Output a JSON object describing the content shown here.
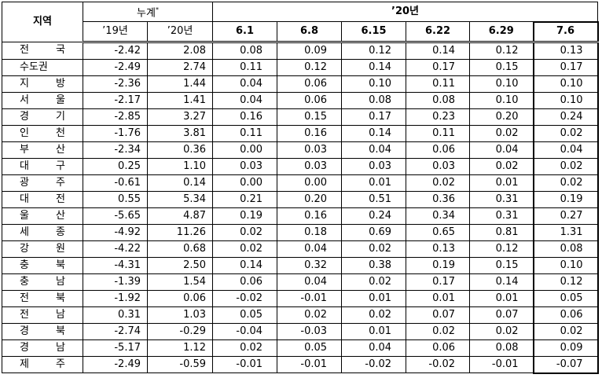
{
  "table": {
    "header": {
      "region": "지역",
      "cumulative": "누계",
      "cumulative_mark": "*",
      "period": "’20년",
      "columns": [
        "’19년",
        "’20년",
        "6.1",
        "6.8",
        "6.15",
        "6.22",
        "6.29",
        "7.6"
      ]
    },
    "rows": [
      [
        "전 국",
        "-2.42",
        "2.08",
        "0.08",
        "0.09",
        "0.12",
        "0.14",
        "0.12",
        "0.13"
      ],
      [
        "수도권",
        "-2.49",
        "2.74",
        "0.11",
        "0.12",
        "0.14",
        "0.17",
        "0.15",
        "0.17"
      ],
      [
        "지 방",
        "-2.36",
        "1.44",
        "0.04",
        "0.06",
        "0.10",
        "0.11",
        "0.10",
        "0.10"
      ],
      [
        "서 울",
        "-2.17",
        "1.41",
        "0.04",
        "0.06",
        "0.08",
        "0.08",
        "0.10",
        "0.10"
      ],
      [
        "경 기",
        "-2.85",
        "3.27",
        "0.16",
        "0.15",
        "0.17",
        "0.23",
        "0.20",
        "0.24"
      ],
      [
        "인 천",
        "-1.76",
        "3.81",
        "0.11",
        "0.16",
        "0.14",
        "0.11",
        "0.02",
        "0.02"
      ],
      [
        "부 산",
        "-2.34",
        "0.36",
        "0.00",
        "0.03",
        "0.04",
        "0.06",
        "0.04",
        "0.04"
      ],
      [
        "대 구",
        "0.25",
        "1.10",
        "0.03",
        "0.03",
        "0.03",
        "0.03",
        "0.02",
        "0.02"
      ],
      [
        "광 주",
        "-0.61",
        "0.14",
        "0.00",
        "0.00",
        "0.01",
        "0.02",
        "0.01",
        "0.02"
      ],
      [
        "대 전",
        "0.55",
        "5.34",
        "0.21",
        "0.20",
        "0.51",
        "0.36",
        "0.31",
        "0.19"
      ],
      [
        "울 산",
        "-5.65",
        "4.87",
        "0.19",
        "0.16",
        "0.24",
        "0.34",
        "0.31",
        "0.27"
      ],
      [
        "세 종",
        "-4.92",
        "11.26",
        "0.02",
        "0.18",
        "0.69",
        "0.65",
        "0.81",
        "1.31"
      ],
      [
        "강 원",
        "-4.22",
        "0.68",
        "0.02",
        "0.04",
        "0.02",
        "0.13",
        "0.12",
        "0.08"
      ],
      [
        "충 북",
        "-4.31",
        "2.50",
        "0.14",
        "0.32",
        "0.38",
        "0.19",
        "0.15",
        "0.10"
      ],
      [
        "충 남",
        "-1.39",
        "1.54",
        "0.06",
        "0.04",
        "0.02",
        "0.17",
        "0.14",
        "0.12"
      ],
      [
        "전 북",
        "-1.92",
        "0.06",
        "-0.02",
        "-0.01",
        "0.01",
        "0.01",
        "0.01",
        "0.05"
      ],
      [
        "전 남",
        "0.31",
        "1.03",
        "0.05",
        "0.02",
        "0.02",
        "0.07",
        "0.07",
        "0.06"
      ],
      [
        "경 북",
        "-2.74",
        "-0.29",
        "-0.04",
        "-0.03",
        "0.01",
        "0.02",
        "0.02",
        "0.02"
      ],
      [
        "경 남",
        "-5.17",
        "1.12",
        "0.02",
        "0.05",
        "0.04",
        "0.06",
        "0.08",
        "0.09"
      ],
      [
        "제 주",
        "-2.49",
        "-0.59",
        "-0.01",
        "-0.01",
        "-0.02",
        "-0.02",
        "-0.01",
        "-0.07"
      ]
    ]
  }
}
